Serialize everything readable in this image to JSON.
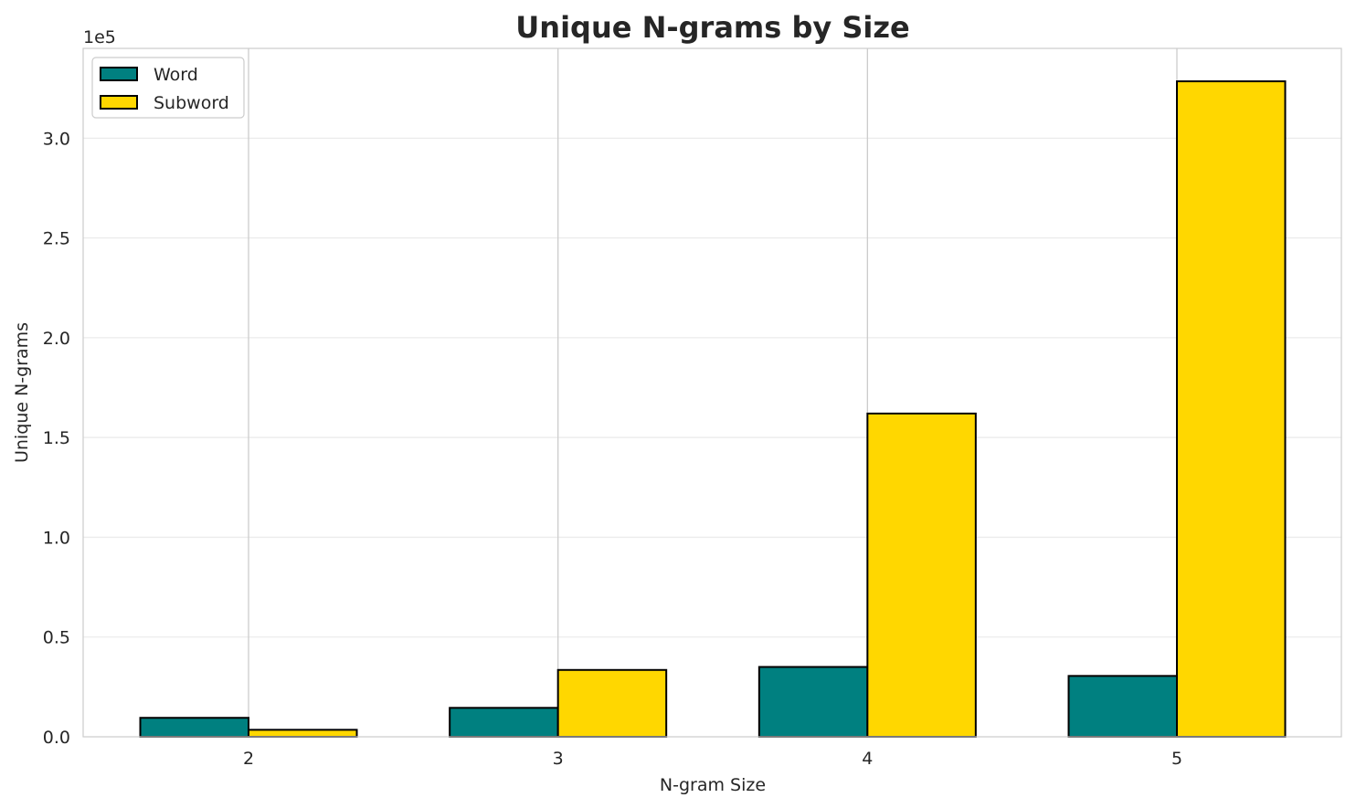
{
  "chart_data": {
    "type": "bar",
    "title": "Unique N-grams by Size",
    "xlabel": "N-gram Size",
    "ylabel": "Unique N-grams",
    "y_scale_label": "1e5",
    "categories": [
      "2",
      "3",
      "4",
      "5"
    ],
    "series": [
      {
        "name": "Word",
        "color": "#008080",
        "values": [
          9500,
          14500,
          35000,
          30500
        ]
      },
      {
        "name": "Subword",
        "color": "#FFD700",
        "values": [
          3500,
          33500,
          162000,
          328500
        ]
      }
    ],
    "ylim": [
      0,
      345000
    ],
    "yticks": [
      {
        "value": 0,
        "label": "0.0"
      },
      {
        "value": 50000,
        "label": "0.5"
      },
      {
        "value": 100000,
        "label": "1.0"
      },
      {
        "value": 150000,
        "label": "1.5"
      },
      {
        "value": 200000,
        "label": "2.0"
      },
      {
        "value": 250000,
        "label": "2.5"
      },
      {
        "value": 300000,
        "label": "3.0"
      }
    ],
    "grid": true,
    "legend_position": "top-left"
  }
}
